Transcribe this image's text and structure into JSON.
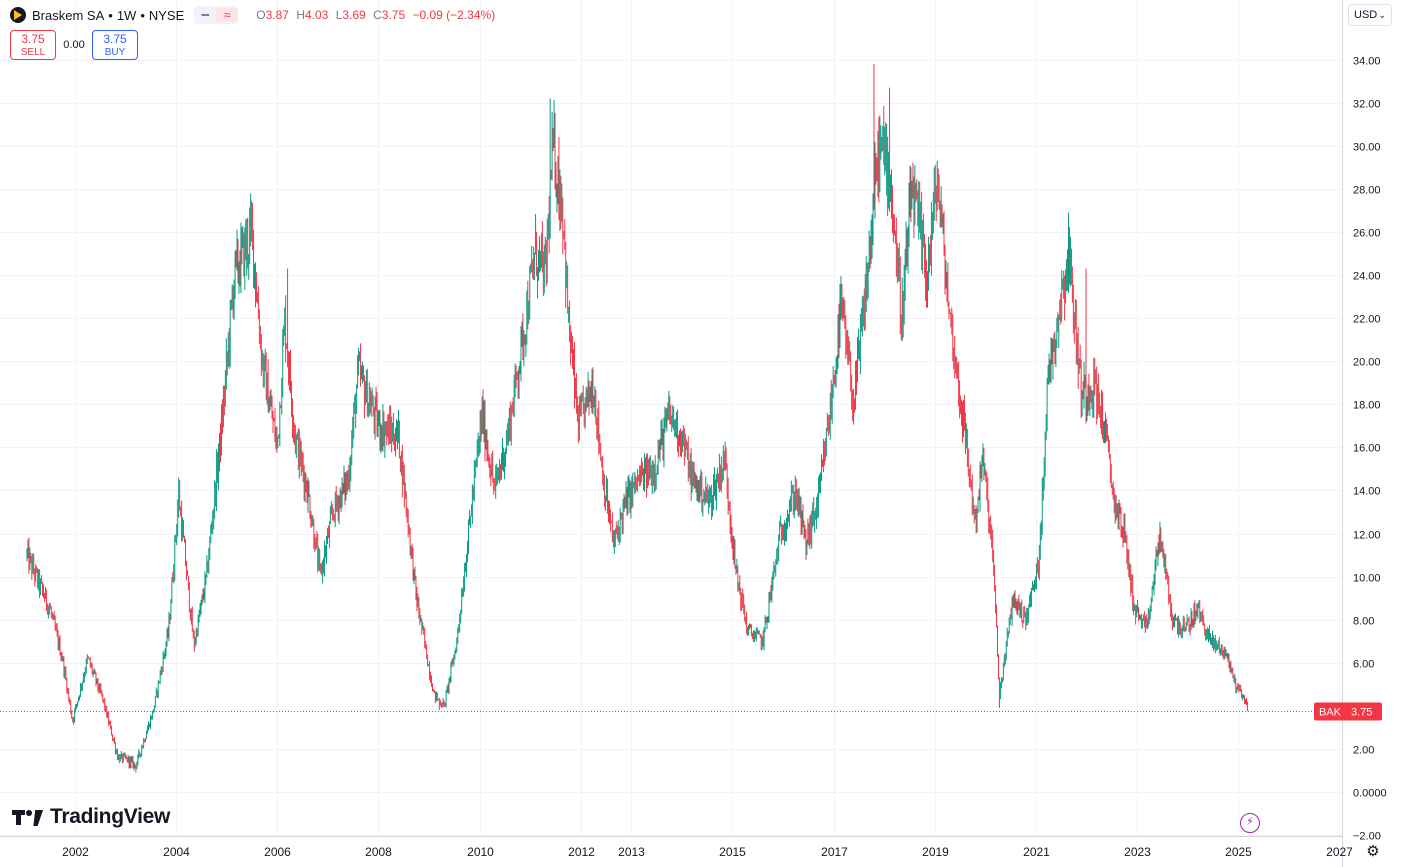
{
  "legend": {
    "name": "Braskem SA",
    "interval": "1W",
    "exchange": "NYSE",
    "sep": "•",
    "open_label": "O",
    "open": "3.87",
    "high_label": "H",
    "high": "4.03",
    "low_label": "L",
    "low": "3.69",
    "close_label": "C",
    "close": "3.75",
    "change": "−0.09 (−2.34%)",
    "collapse_icon": "minus-icon",
    "compare_icon": "wave-icon"
  },
  "trade": {
    "sell_price": "3.75",
    "sell_label": "SELL",
    "spread": "0.00",
    "buy_price": "3.75",
    "buy_label": "BUY"
  },
  "currency": "USD",
  "brand": "TradingView",
  "colors": {
    "up": "#089981",
    "down": "#f23645",
    "grid": "#f0f3fa",
    "price_line": "#f23645",
    "buy": "#2962ff"
  },
  "chart_data": {
    "type": "candlestick",
    "symbol": "BAK",
    "last_price": 3.75,
    "ylim": [
      -2,
      35
    ],
    "y_ticks": [
      "34.00",
      "32.00",
      "30.00",
      "28.00",
      "26.00",
      "24.00",
      "22.00",
      "20.00",
      "18.00",
      "16.00",
      "14.00",
      "12.00",
      "10.00",
      "8.00",
      "6.00",
      "4.00",
      "2.00",
      "0.0000",
      "−2.00"
    ],
    "x_ticks": [
      "2002",
      "2004",
      "2006",
      "2008",
      "2010",
      "2012",
      "2013",
      "2015",
      "2017",
      "2019",
      "2021",
      "2023",
      "2025",
      "2027"
    ],
    "x_tick_years": [
      2002,
      2004,
      2006,
      2008,
      2010,
      2012,
      2013,
      2015,
      2017,
      2019,
      2021,
      2023,
      2025,
      2027
    ],
    "grid": true,
    "price_path": [
      [
        2001.05,
        11.0
      ],
      [
        2001.5,
        8.5
      ],
      [
        2001.75,
        6.2
      ],
      [
        2001.95,
        3.3
      ],
      [
        2002.25,
        6.2
      ],
      [
        2002.55,
        4.3
      ],
      [
        2002.85,
        1.6
      ],
      [
        2003.05,
        1.5
      ],
      [
        2003.2,
        1.2
      ],
      [
        2003.55,
        3.8
      ],
      [
        2003.85,
        7.5
      ],
      [
        2004.05,
        13.8
      ],
      [
        2004.35,
        6.8
      ],
      [
        2004.6,
        10.0
      ],
      [
        2004.9,
        17.0
      ],
      [
        2005.15,
        24.0
      ],
      [
        2005.5,
        26.0
      ],
      [
        2005.7,
        20.0
      ],
      [
        2006.0,
        16.0
      ],
      [
        2006.15,
        22.0
      ],
      [
        2006.35,
        16.5
      ],
      [
        2006.6,
        14.0
      ],
      [
        2006.85,
        10.0
      ],
      [
        2007.1,
        13.0
      ],
      [
        2007.4,
        14.5
      ],
      [
        2007.6,
        19.5
      ],
      [
        2008.0,
        17.0
      ],
      [
        2008.4,
        16.5
      ],
      [
        2008.75,
        9.0
      ],
      [
        2009.1,
        4.5
      ],
      [
        2009.3,
        4.0
      ],
      [
        2009.55,
        7.0
      ],
      [
        2009.85,
        13.5
      ],
      [
        2010.05,
        17.5
      ],
      [
        2010.3,
        14.0
      ],
      [
        2010.55,
        16.5
      ],
      [
        2010.85,
        21.0
      ],
      [
        2011.1,
        25.0
      ],
      [
        2011.3,
        24.0
      ],
      [
        2011.45,
        30.0
      ],
      [
        2011.65,
        27.0
      ],
      [
        2011.75,
        22.0
      ],
      [
        2011.95,
        17.0
      ],
      [
        2012.25,
        19.0
      ],
      [
        2012.45,
        14.5
      ],
      [
        2012.65,
        11.5
      ],
      [
        2012.9,
        13.5
      ],
      [
        2013.15,
        14.5
      ],
      [
        2013.45,
        15.0
      ],
      [
        2013.75,
        17.5
      ],
      [
        2014.0,
        16.5
      ],
      [
        2014.2,
        14.5
      ],
      [
        2014.55,
        13.5
      ],
      [
        2014.85,
        15.5
      ],
      [
        2015.05,
        10.5
      ],
      [
        2015.3,
        7.5
      ],
      [
        2015.6,
        7.0
      ],
      [
        2015.95,
        12.0
      ],
      [
        2016.25,
        14.0
      ],
      [
        2016.45,
        11.5
      ],
      [
        2016.7,
        13.5
      ],
      [
        2016.95,
        18.0
      ],
      [
        2017.15,
        22.5
      ],
      [
        2017.4,
        18.0
      ],
      [
        2017.65,
        23.5
      ],
      [
        2017.9,
        30.0
      ],
      [
        2018.1,
        29.0
      ],
      [
        2018.35,
        22.0
      ],
      [
        2018.55,
        28.0
      ],
      [
        2018.85,
        24.0
      ],
      [
        2019.05,
        28.5
      ],
      [
        2019.3,
        22.0
      ],
      [
        2019.55,
        17.5
      ],
      [
        2019.8,
        12.5
      ],
      [
        2019.95,
        15.5
      ],
      [
        2020.15,
        11.0
      ],
      [
        2020.28,
        4.5
      ],
      [
        2020.55,
        9.0
      ],
      [
        2020.8,
        8.0
      ],
      [
        2021.05,
        10.5
      ],
      [
        2021.25,
        19.5
      ],
      [
        2021.5,
        23.0
      ],
      [
        2021.65,
        25.0
      ],
      [
        2021.9,
        18.5
      ],
      [
        2022.15,
        19.0
      ],
      [
        2022.35,
        17.0
      ],
      [
        2022.55,
        13.5
      ],
      [
        2022.75,
        12.0
      ],
      [
        2022.95,
        8.5
      ],
      [
        2023.2,
        7.5
      ],
      [
        2023.45,
        12.0
      ],
      [
        2023.7,
        8.0
      ],
      [
        2023.95,
        7.5
      ],
      [
        2024.2,
        8.5
      ],
      [
        2024.45,
        7.0
      ],
      [
        2024.75,
        6.5
      ],
      [
        2024.95,
        5.0
      ],
      [
        2025.1,
        4.5
      ],
      [
        2025.2,
        3.75
      ]
    ],
    "noise_peaks": [
      [
        2005.4,
        26.3
      ],
      [
        2006.2,
        24.3
      ],
      [
        2011.4,
        32.2
      ],
      [
        2017.8,
        33.8
      ],
      [
        2018.1,
        32.7
      ],
      [
        2021.65,
        26.9
      ],
      [
        2022.0,
        24.3
      ],
      [
        2020.28,
        3.9
      ],
      [
        2009.2,
        3.8
      ],
      [
        2003.1,
        1.1
      ]
    ]
  }
}
